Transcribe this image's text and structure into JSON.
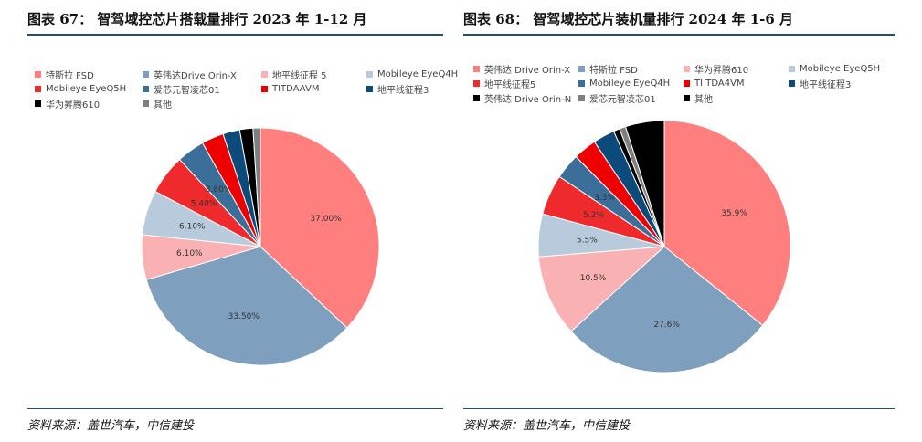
{
  "colors": {
    "rule": "#1f4e79",
    "slices": [
      "#ff7f7f",
      "#7f9fbf",
      "#f9b1b3",
      "#b7cbdc",
      "#ee2a2c",
      "#3b6f9a",
      "#ee0000",
      "#0b4a7a",
      "#000000",
      "#7f7f7f"
    ]
  },
  "chart_data": [
    {
      "type": "pie",
      "title": "图表 67：  智驾域控芯片搭载量排行 2023 年 1-12 月",
      "source": "资料来源：盖世汽车，中信建投",
      "legend": [
        "特斯拉 FSD",
        "英伟达Drive Orin-X",
        "地平线征程 5",
        "Mobileye EyeQ4H",
        "Mobileye EyeQ5H",
        "爱芯元智凌芯01",
        "TITDAAVM",
        "地平线征程3",
        "华为昇腾610",
        "其他"
      ],
      "slices": [
        {
          "name": "特斯拉 FSD",
          "value": 37.0,
          "label": "37.00%",
          "color": "#ff7f7f"
        },
        {
          "name": "英伟达Drive Orin-X",
          "value": 33.5,
          "label": "33.50%",
          "color": "#7f9fbf"
        },
        {
          "name": "地平线征程 5",
          "value": 6.1,
          "label": "6.10%",
          "color": "#f9b1b3"
        },
        {
          "name": "Mobileye EyeQ4H",
          "value": 6.1,
          "label": "6.10%",
          "color": "#b7cbdc"
        },
        {
          "name": "Mobileye EyeQ5H",
          "value": 5.4,
          "label": "5.40%",
          "color": "#ee2a2c"
        },
        {
          "name": "爱芯元智凌芯01",
          "value": 3.8,
          "label": "3.80%",
          "color": "#3b6f9a"
        },
        {
          "name": "TITDAAVM",
          "value": 3.0,
          "label": "",
          "color": "#ee0000"
        },
        {
          "name": "地平线征程3",
          "value": 2.3,
          "label": "",
          "color": "#0b4a7a"
        },
        {
          "name": "华为昇腾610",
          "value": 1.8,
          "label": "",
          "color": "#000000"
        },
        {
          "name": "其他",
          "value": 1.0,
          "label": "",
          "color": "#7f7f7f"
        }
      ]
    },
    {
      "type": "pie",
      "title": "图表 68：  智驾域控芯片装机量排行 2024 年 1-6 月",
      "source": "资料来源：盖世汽车，中信建投",
      "legend": [
        "英伟达 Drive Orin-X",
        "特斯拉 FSD",
        "华为昇腾610",
        "Mobileye EyeQ5H",
        "地平线征程5",
        "Mobileye EyeQ4H",
        "TI TDA4VM",
        "地平线征程3",
        "英伟达 Drive Orin-N",
        "爱芯元智凌芯01",
        "其他"
      ],
      "slices": [
        {
          "name": "英伟达 Drive Orin-X",
          "value": 35.9,
          "label": "35.9%",
          "color": "#ff7f7f"
        },
        {
          "name": "特斯拉 FSD",
          "value": 27.6,
          "label": "27.6%",
          "color": "#7f9fbf"
        },
        {
          "name": "华为昇腾610",
          "value": 10.5,
          "label": "10.5%",
          "color": "#f9b1b3"
        },
        {
          "name": "Mobileye EyeQ5H",
          "value": 5.5,
          "label": "5.5%",
          "color": "#b7cbdc"
        },
        {
          "name": "地平线征程5",
          "value": 5.2,
          "label": "5.2%",
          "color": "#ee2a2c"
        },
        {
          "name": "Mobileye EyeQ4H",
          "value": 3.3,
          "label": "3.3%",
          "color": "#3b6f9a"
        },
        {
          "name": "TI TDA4VM",
          "value": 3.0,
          "label": "",
          "color": "#ee0000"
        },
        {
          "name": "地平线征程3",
          "value": 2.8,
          "label": "",
          "color": "#0b4a7a"
        },
        {
          "name": "英伟达 Drive Orin-N",
          "value": 0.8,
          "label": "",
          "color": "#000000"
        },
        {
          "name": "爱芯元智凌芯01",
          "value": 0.8,
          "label": "",
          "color": "#7f7f7f"
        },
        {
          "name": "其他",
          "value": 5.0,
          "label": "",
          "color": "#000000"
        }
      ]
    }
  ]
}
